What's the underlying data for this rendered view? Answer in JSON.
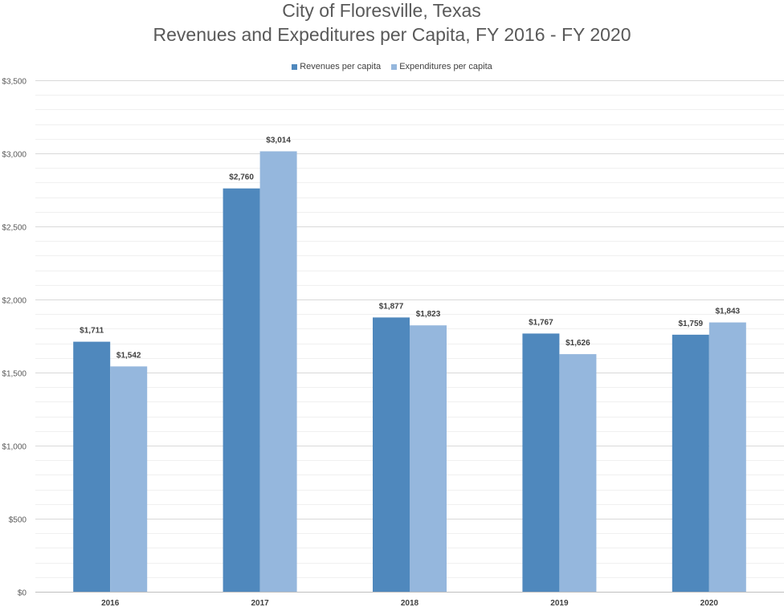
{
  "chart_data": {
    "type": "bar",
    "title": "City of Floresville, Texas",
    "subtitle": "Revenues and Expeditures per Capita, FY 2016 - FY 2020",
    "categories": [
      "2016",
      "2017",
      "2018",
      "2019",
      "2020"
    ],
    "series": [
      {
        "name": "Revenues per capita",
        "values": [
          1711,
          2760,
          1877,
          1767,
          1759
        ],
        "labels": [
          "$1,711",
          "$2,760",
          "$1,877",
          "$1,767",
          "$1,759"
        ],
        "color": "#4f88bd"
      },
      {
        "name": "Expenditures per capita",
        "values": [
          1542,
          3014,
          1823,
          1626,
          1843
        ],
        "labels": [
          "$1,542",
          "$3,014",
          "$1,823",
          "$1,626",
          "$1,843"
        ],
        "color": "#95b7dd"
      }
    ],
    "ylim": [
      0,
      3500
    ],
    "yticks": [
      0,
      500,
      1000,
      1500,
      2000,
      2500,
      3000,
      3500
    ],
    "ytick_labels": [
      "$0",
      "$500",
      "$1,000",
      "$1,500",
      "$2,000",
      "$2,500",
      "$3,000",
      "$3,500"
    ],
    "xlabel": "",
    "ylabel": "",
    "grid": true,
    "legend_position": "top"
  }
}
